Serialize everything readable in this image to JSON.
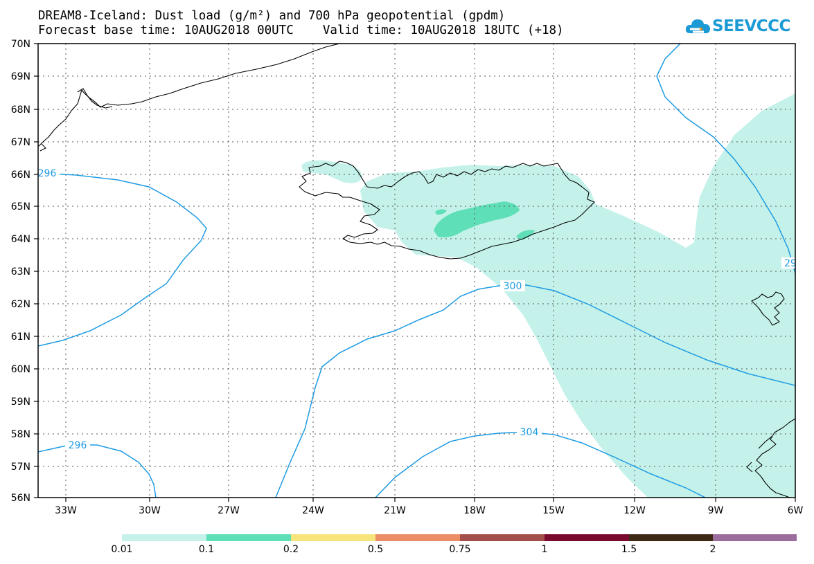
{
  "title_line1": "DREAM8-Iceland: Dust load (g/m²) and 700 hPa geopotential (gpdm)",
  "title_line2": "Forecast base time: 10AUG2018 00UTC    Valid time: 10AUG2018 18UTC (+18)",
  "logo": {
    "text": "SEEVCCC",
    "icon": "cloud-logo-icon",
    "color": "#1c9ad6"
  },
  "map": {
    "lat_labels": [
      "70N",
      "69N",
      "68N",
      "67N",
      "66N",
      "65N",
      "64N",
      "63N",
      "62N",
      "61N",
      "60N",
      "59N",
      "58N",
      "57N",
      "56N"
    ],
    "lon_labels": [
      "33W",
      "30W",
      "27W",
      "24W",
      "21W",
      "18W",
      "15W",
      "12W",
      "9W",
      "6W"
    ],
    "contour_labels": [
      "296",
      "300",
      "304",
      "296",
      "29"
    ],
    "contour_color": "#1e9be3",
    "dust_light_color": "#c4f2ea",
    "dust_mid_color": "#5fdfb7",
    "coastline_color": "#000000"
  },
  "colorbar": {
    "labels": [
      "0.01",
      "0.1",
      "0.2",
      "0.5",
      "0.75",
      "1",
      "1.5",
      "2"
    ],
    "colors": [
      "#c4f2ea",
      "#5fdfb7",
      "#f7e57b",
      "#ec8e66",
      "#a4504a",
      "#7a0a2e",
      "#3e2a14",
      "#9a6d9e"
    ]
  }
}
